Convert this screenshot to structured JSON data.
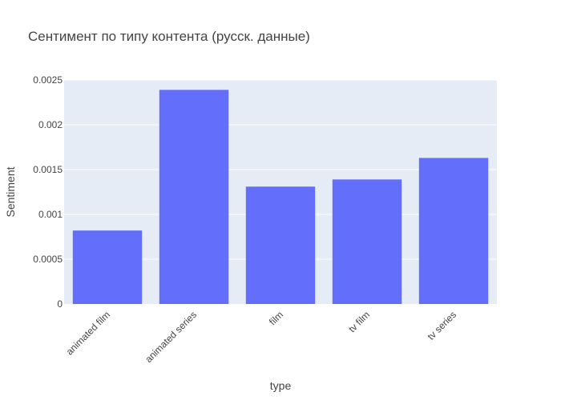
{
  "chart_data": {
    "type": "bar",
    "title": "Сентимент по типу контента (русск. данные)",
    "xlabel": "type",
    "ylabel": "Sentiment",
    "categories": [
      "animated film",
      "animated series",
      "film",
      "tv film",
      "tv series"
    ],
    "values": [
      0.00082,
      0.00239,
      0.00131,
      0.00139,
      0.00163
    ],
    "ylim": [
      0,
      0.0025
    ],
    "yticks": [
      0,
      0.0005,
      0.001,
      0.0015,
      0.002,
      0.0025
    ],
    "ytick_labels": [
      "0",
      "0.0005",
      "0.001",
      "0.0015",
      "0.002",
      "0.0025"
    ],
    "grid": true,
    "colors": {
      "bar": "#636efa",
      "plot_background": "#e5ecf6",
      "grid": "#ffffff",
      "text": "#444444"
    }
  }
}
